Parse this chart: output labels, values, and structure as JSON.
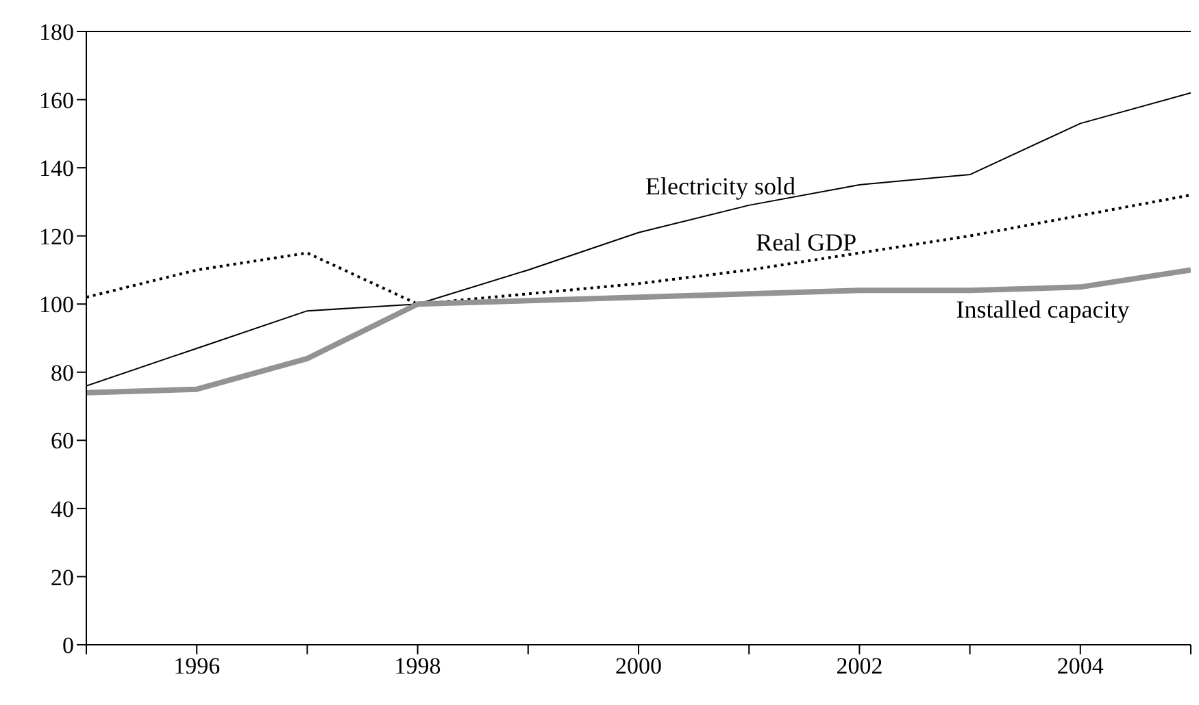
{
  "chart_data": {
    "type": "line",
    "x": [
      1995,
      1996,
      1997,
      1998,
      1999,
      2000,
      2001,
      2002,
      2003,
      2004,
      2005
    ],
    "xlim": [
      1995,
      2005
    ],
    "xticks": [
      {
        "value": 1995,
        "label": null
      },
      1996,
      {
        "value": 1997,
        "label": null
      },
      1998,
      {
        "value": 1999,
        "label": null
      },
      2000,
      {
        "value": 2001,
        "label": null
      },
      2002,
      {
        "value": 2003,
        "label": null
      },
      2004,
      {
        "value": 2005,
        "label": null
      }
    ],
    "ylim": [
      0,
      180
    ],
    "yticks": [
      0,
      20,
      40,
      60,
      80,
      100,
      120,
      140,
      160,
      180
    ],
    "grid": false,
    "legend": false,
    "marker": "none",
    "series": [
      {
        "name": "Electricity sold",
        "color": "#000000",
        "line_style": "solid",
        "values": [
          76,
          87,
          98,
          100,
          110,
          121,
          129,
          135,
          138,
          153,
          162
        ]
      },
      {
        "name": "Real GDP",
        "color": "#000000",
        "line_style": "dotted",
        "values": [
          102,
          110,
          115,
          100,
          null,
          106,
          110,
          115,
          120,
          126,
          132
        ]
      },
      {
        "name": "Installed capacity",
        "color": "#939393",
        "line_style": "solid",
        "values": [
          74,
          75,
          84,
          100,
          101,
          102,
          103,
          104,
          104,
          105,
          110
        ]
      }
    ]
  }
}
